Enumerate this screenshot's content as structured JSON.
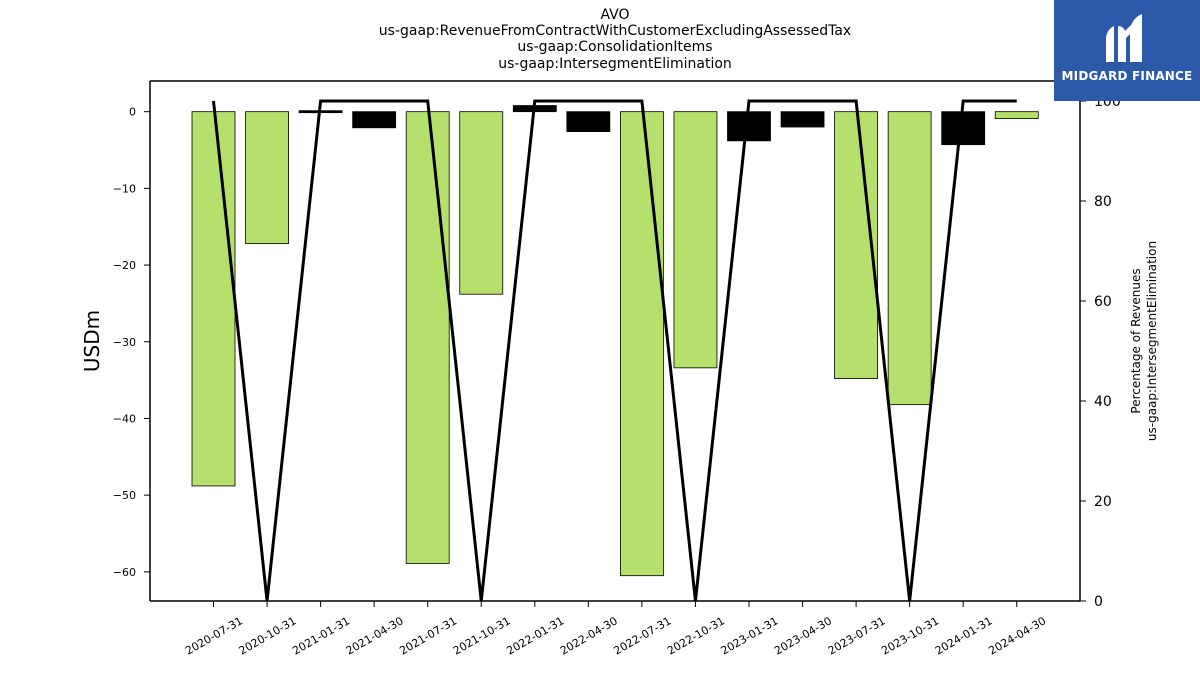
{
  "header": {
    "title_lines": [
      "AVO",
      "us-gaap:RevenueFromContractWithCustomerExcludingAssessedTax",
      "us-gaap:ConsolidationItems",
      "us-gaap:IntersegmentElimination"
    ]
  },
  "logo": {
    "text": "MIDGARD FINANCE",
    "background": "#2c5aa9"
  },
  "chart_data": {
    "type": "bar",
    "categories": [
      "2020-07-31",
      "2020-10-31",
      "2021-01-31",
      "2021-04-30",
      "2021-07-31",
      "2021-10-31",
      "2022-01-31",
      "2022-04-30",
      "2022-07-31",
      "2022-10-31",
      "2023-01-31",
      "2023-04-30",
      "2023-07-31",
      "2023-10-31",
      "2024-01-31",
      "2024-04-30"
    ],
    "ylabel": "USDm",
    "y2label": [
      "Percentage of Revenues",
      "us-gaap:IntersegmentElimination"
    ],
    "ylim": [
      -63.8,
      4
    ],
    "y2lim": [
      0,
      104
    ],
    "yticks": [
      0,
      -10,
      -20,
      -30,
      -40,
      -50,
      -60
    ],
    "yticks_labels": [
      "0",
      "−10",
      "−20",
      "−30",
      "−40",
      "−50",
      "−60"
    ],
    "y2ticks": [
      0,
      20,
      40,
      60,
      80,
      100
    ],
    "y2ticks_labels": [
      "0",
      "20",
      "40",
      "60",
      "80",
      "100"
    ],
    "series": [
      {
        "kind": "bar",
        "values": [
          -48.8,
          -17.2,
          -0.2,
          -2.1,
          -58.9,
          -23.8,
          0.8,
          -2.6,
          -60.5,
          -33.4,
          -3.8,
          -2.0,
          -34.8,
          -38.2,
          -4.3,
          -0.9
        ]
      },
      {
        "kind": "line",
        "axis": "right",
        "values": [
          100,
          0,
          100,
          100,
          100,
          0,
          100,
          100,
          100,
          0,
          100,
          100,
          100,
          0,
          100,
          100
        ]
      }
    ],
    "colors": {
      "bar_fill": "#b5e06b",
      "bar_edge": "#000000",
      "bar_highlight": "#000000",
      "line": "#000000"
    },
    "grid": false
  }
}
